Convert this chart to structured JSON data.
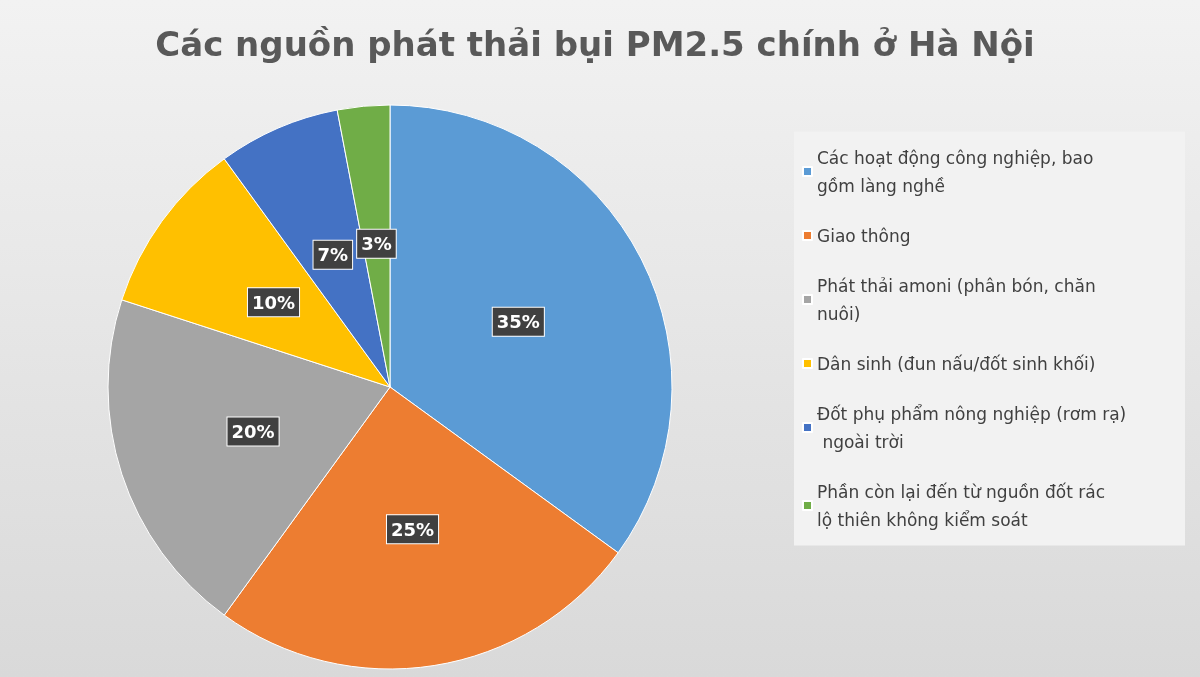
{
  "chart_data": {
    "type": "pie",
    "title": "Các nguồn phát thải bụi PM2.5 chính ở Hà Nội",
    "categories": [
      "Các hoạt động công nghiệp, bao gồm làng nghề",
      "Giao thông",
      "Phát thải amoni (phân bón, chăn nuôi)",
      "Dân sinh (đun nấu/đốt sinh khối)",
      "Đốt phụ phẩm nông nghiệp (rơm rạ) ngoài trời",
      "Phần còn lại đến từ nguồn đốt rác lộ thiên không kiểm soát"
    ],
    "values": [
      35,
      25,
      20,
      10,
      7,
      3
    ],
    "colors": [
      "#5b9bd5",
      "#ed7d31",
      "#a5a5a5",
      "#ffc000",
      "#4472c4",
      "#70ad47"
    ],
    "value_labels": [
      "35%",
      "25%",
      "20%",
      "10%",
      "7%",
      "3%"
    ],
    "legend": "right"
  }
}
